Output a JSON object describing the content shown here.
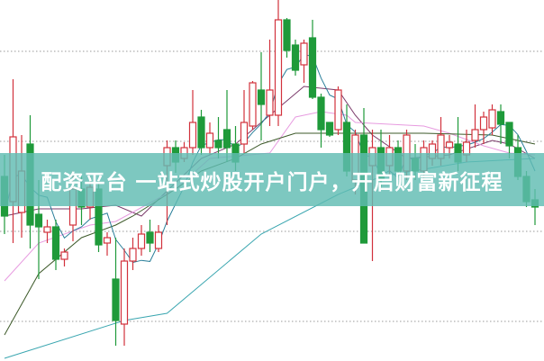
{
  "banner": {
    "text": "配资平台 一站式炒股开户门户，开启财富新征程"
  },
  "chart_data": {
    "type": "candlestick",
    "title": "",
    "xlabel": "",
    "ylabel": "",
    "ylim": [
      0,
      100
    ],
    "grid": true,
    "gridlines": [
      85.75,
      60.75,
      35.75,
      10.75
    ],
    "colors": {
      "up": "#d2323c",
      "down": "#1f9a3a",
      "ma5": "#2a7f9a",
      "ma10": "#7a3a6a",
      "ma20": "#e79be0",
      "ma30": "#3d5a2a",
      "ma60": "#3aa6b0",
      "grid": "#999999",
      "banner": "#60bcb2"
    },
    "candles_ohlc": [
      [
        51,
        57,
        35,
        40
      ],
      [
        44,
        78,
        32.5,
        62
      ],
      [
        41,
        62.5,
        34,
        52.5
      ],
      [
        60,
        68,
        31,
        37.5
      ],
      [
        40.5,
        50,
        22.5,
        37
      ],
      [
        35.5,
        39,
        32.5,
        37
      ],
      [
        37,
        39,
        25,
        28
      ],
      [
        28,
        31,
        26,
        30
      ],
      [
        37.5,
        52.5,
        33,
        47.5
      ],
      [
        47.5,
        51,
        37.5,
        42.5
      ],
      [
        42.5,
        51,
        39,
        48
      ],
      [
        47.5,
        50,
        30,
        32
      ],
      [
        32.5,
        35.5,
        29,
        34
      ],
      [
        22.5,
        34,
        4,
        11
      ],
      [
        10,
        31,
        4,
        27.5
      ],
      [
        27.5,
        34,
        25,
        31
      ],
      [
        31,
        37.5,
        29,
        35
      ],
      [
        35.5,
        39,
        30,
        32.5
      ],
      [
        31,
        37.5,
        30,
        35.5
      ],
      [
        54,
        61,
        37.5,
        59
      ],
      [
        59,
        61,
        52,
        55
      ],
      [
        56,
        60.5,
        55,
        59
      ],
      [
        59,
        75,
        57,
        66
      ],
      [
        67.5,
        69.5,
        57,
        59
      ],
      [
        59,
        66,
        57,
        63
      ],
      [
        61,
        67.5,
        56,
        59
      ],
      [
        64,
        75,
        55,
        59
      ],
      [
        60,
        65,
        52.5,
        55
      ],
      [
        60,
        75,
        57.5,
        66
      ],
      [
        65,
        77.5,
        64,
        77
      ],
      [
        75,
        85.5,
        61,
        71
      ],
      [
        68,
        89,
        65,
        75
      ],
      [
        68,
        100,
        65,
        94.5
      ],
      [
        94.5,
        95,
        84,
        86
      ],
      [
        87.5,
        89,
        79,
        80.5
      ],
      [
        82,
        89,
        77,
        88
      ],
      [
        89.5,
        94.5,
        72.5,
        73
      ],
      [
        73,
        74,
        59,
        64
      ],
      [
        66,
        66,
        62,
        62.5
      ],
      [
        64,
        76,
        62.5,
        75
      ],
      [
        66,
        71,
        51,
        52.5
      ],
      [
        50,
        64,
        46,
        62.5
      ],
      [
        62.5,
        70,
        32.5,
        32.5
      ],
      [
        54,
        64,
        27.5,
        59
      ],
      [
        59,
        64,
        47.5,
        50
      ],
      [
        54,
        62.5,
        50,
        59
      ],
      [
        59,
        61,
        50,
        52.5
      ],
      [
        52.5,
        64,
        50,
        62.5
      ],
      [
        56,
        60,
        50,
        52.5
      ],
      [
        52.5,
        61,
        50,
        59
      ],
      [
        56,
        61,
        54,
        60
      ],
      [
        56,
        67.5,
        54,
        62.5
      ],
      [
        59,
        62.5,
        56,
        60.5
      ],
      [
        60,
        67.5,
        52.5,
        55
      ],
      [
        57,
        64,
        55,
        60.5
      ],
      [
        61,
        71,
        59,
        64
      ],
      [
        64,
        69,
        60,
        67.5
      ],
      [
        64.5,
        71,
        62.5,
        69.5
      ],
      [
        69,
        71,
        60,
        65.5
      ],
      [
        66,
        66,
        56,
        59.5
      ],
      [
        59,
        62.5,
        50,
        51
      ],
      [
        51,
        52.5,
        42.5,
        44
      ],
      [
        44.5,
        47.5,
        37.5,
        42.5
      ]
    ],
    "moving_averages": [
      {
        "key": "ma10",
        "points": [
          [
            1,
            40
          ],
          [
            5,
            42
          ],
          [
            10,
            42
          ],
          [
            14,
            43
          ],
          [
            17,
            40
          ],
          [
            20,
            47
          ],
          [
            24,
            56
          ],
          [
            28,
            60
          ],
          [
            31,
            66
          ],
          [
            33,
            70
          ],
          [
            36,
            76
          ],
          [
            38,
            75.5
          ],
          [
            40,
            75
          ],
          [
            42,
            68
          ],
          [
            44,
            62.5
          ],
          [
            48,
            56
          ],
          [
            53,
            57
          ],
          [
            58,
            61
          ],
          [
            60,
            60
          ],
          [
            63,
            56
          ]
        ]
      },
      {
        "key": "ma20",
        "points": [
          [
            1,
            22
          ],
          [
            5,
            32.5
          ],
          [
            11,
            37.5
          ],
          [
            14,
            38.5
          ],
          [
            21,
            47.5
          ],
          [
            25,
            56
          ],
          [
            32,
            57.5
          ],
          [
            35,
            67.5
          ],
          [
            38,
            69
          ],
          [
            41,
            68
          ],
          [
            42,
            66
          ],
          [
            46,
            65.5
          ],
          [
            50,
            65
          ],
          [
            53,
            63
          ],
          [
            57,
            59.5
          ],
          [
            60,
            57.5
          ],
          [
            63,
            57
          ]
        ]
      },
      {
        "key": "ma30",
        "points": [
          [
            1,
            7
          ],
          [
            5,
            24
          ],
          [
            10,
            34
          ],
          [
            14,
            37.5
          ],
          [
            16,
            40
          ],
          [
            21,
            47.5
          ],
          [
            24,
            52.5
          ],
          [
            28,
            56
          ],
          [
            31,
            60
          ],
          [
            35,
            63
          ],
          [
            40,
            63
          ],
          [
            50,
            63
          ],
          [
            58,
            62.5
          ],
          [
            63,
            60
          ]
        ]
      },
      {
        "key": "ma60",
        "points": [
          [
            1,
            0.5
          ],
          [
            15,
            11
          ],
          [
            20,
            13
          ],
          [
            31,
            35
          ],
          [
            40,
            46
          ],
          [
            45,
            51
          ],
          [
            55,
            55
          ],
          [
            63,
            56
          ]
        ]
      }
    ]
  }
}
